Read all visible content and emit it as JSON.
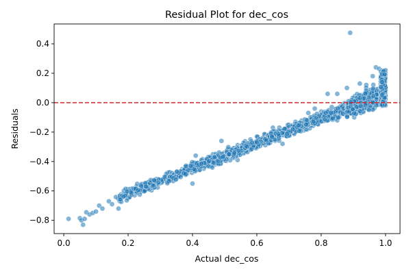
{
  "chart_data": {
    "type": "scatter",
    "title": "Residual Plot for dec_cos",
    "xlabel": "Actual dec_cos",
    "ylabel": "Residuals",
    "xlim": [
      -0.03,
      1.045
    ],
    "ylim": [
      -0.89,
      0.535
    ],
    "xticks": [
      0.0,
      0.2,
      0.4,
      0.6,
      0.8,
      1.0
    ],
    "yticks": [
      -0.8,
      -0.6,
      -0.4,
      -0.2,
      0.0,
      0.2,
      0.4
    ],
    "grid": false,
    "legend": "none",
    "reference_line": {
      "y": 0.0,
      "style": "dashed",
      "color": "#d62728"
    },
    "point_color": "#1f77b4",
    "point_opacity": 0.55,
    "trend": {
      "slope": 0.855,
      "intercept": -0.79,
      "spread": 0.025
    },
    "points": [
      {
        "x": 0.015,
        "y": -0.79
      },
      {
        "x": 0.05,
        "y": -0.785
      },
      {
        "x": 0.055,
        "y": -0.8
      },
      {
        "x": 0.06,
        "y": -0.83
      },
      {
        "x": 0.065,
        "y": -0.79
      },
      {
        "x": 0.07,
        "y": -0.745
      },
      {
        "x": 0.08,
        "y": -0.76
      },
      {
        "x": 0.09,
        "y": -0.75
      },
      {
        "x": 0.1,
        "y": -0.74
      },
      {
        "x": 0.11,
        "y": -0.7
      },
      {
        "x": 0.12,
        "y": -0.72
      },
      {
        "x": 0.14,
        "y": -0.67
      },
      {
        "x": 0.15,
        "y": -0.69
      },
      {
        "x": 0.17,
        "y": -0.72
      },
      {
        "x": 0.17,
        "y": -0.65
      },
      {
        "x": 0.2,
        "y": -0.65
      },
      {
        "x": 0.22,
        "y": -0.63
      },
      {
        "x": 0.25,
        "y": -0.6
      },
      {
        "x": 0.28,
        "y": -0.57
      },
      {
        "x": 0.3,
        "y": -0.54
      },
      {
        "x": 0.33,
        "y": -0.51
      },
      {
        "x": 0.36,
        "y": -0.48
      },
      {
        "x": 0.38,
        "y": -0.47
      },
      {
        "x": 0.4,
        "y": -0.55
      },
      {
        "x": 0.41,
        "y": -0.36
      },
      {
        "x": 0.44,
        "y": -0.43
      },
      {
        "x": 0.46,
        "y": -0.38
      },
      {
        "x": 0.49,
        "y": -0.26
      },
      {
        "x": 0.5,
        "y": -0.37
      },
      {
        "x": 0.52,
        "y": -0.33
      },
      {
        "x": 0.54,
        "y": -0.39
      },
      {
        "x": 0.56,
        "y": -0.28
      },
      {
        "x": 0.58,
        "y": -0.25
      },
      {
        "x": 0.6,
        "y": -0.23
      },
      {
        "x": 0.63,
        "y": -0.26
      },
      {
        "x": 0.65,
        "y": -0.17
      },
      {
        "x": 0.67,
        "y": -0.17
      },
      {
        "x": 0.68,
        "y": -0.28
      },
      {
        "x": 0.7,
        "y": -0.15
      },
      {
        "x": 0.72,
        "y": -0.13
      },
      {
        "x": 0.74,
        "y": -0.14
      },
      {
        "x": 0.76,
        "y": -0.07
      },
      {
        "x": 0.78,
        "y": -0.04
      },
      {
        "x": 0.8,
        "y": -0.06
      },
      {
        "x": 0.82,
        "y": 0.06
      },
      {
        "x": 0.85,
        "y": 0.06
      },
      {
        "x": 0.85,
        "y": -0.12
      },
      {
        "x": 0.88,
        "y": 0.1
      },
      {
        "x": 0.89,
        "y": 0.475
      },
      {
        "x": 0.9,
        "y": -0.05
      },
      {
        "x": 0.92,
        "y": 0.13
      },
      {
        "x": 0.94,
        "y": 0.12
      },
      {
        "x": 0.96,
        "y": 0.18
      },
      {
        "x": 0.97,
        "y": 0.24
      },
      {
        "x": 0.98,
        "y": 0.23
      },
      {
        "x": 0.99,
        "y": 0.2
      },
      {
        "x": 1.0,
        "y": 0.22
      },
      {
        "x": 1.0,
        "y": 0.05
      },
      {
        "x": 0.99,
        "y": 0.0
      },
      {
        "x": 0.97,
        "y": 0.02
      }
    ]
  }
}
